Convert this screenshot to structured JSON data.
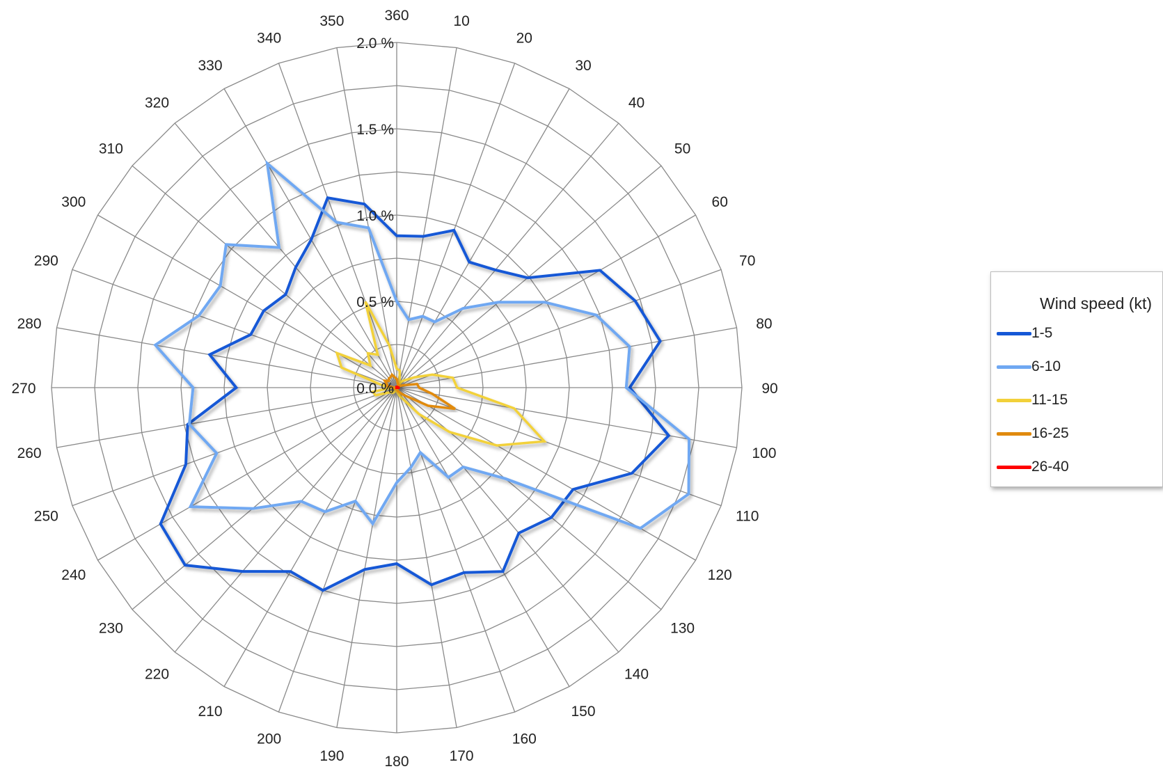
{
  "chart_data": {
    "type": "radar",
    "directions": [
      360,
      10,
      20,
      30,
      40,
      50,
      60,
      70,
      80,
      90,
      100,
      110,
      120,
      130,
      140,
      150,
      160,
      170,
      180,
      190,
      200,
      210,
      220,
      230,
      240,
      250,
      260,
      270,
      280,
      290,
      300,
      310,
      320,
      330,
      340,
      350
    ],
    "radial_ticks": [
      "0.0 %",
      "0.5 %",
      "1.0 %",
      "1.5 %",
      "2.0 %"
    ],
    "radial_range": [
      0,
      2.0
    ],
    "grid": true,
    "legend": {
      "title": "Wind speed (kt)",
      "placement": "right"
    },
    "series": [
      {
        "name": "1-5",
        "color": "#1558d6",
        "values": [
          0.88,
          0.89,
          0.97,
          0.84,
          0.89,
          0.99,
          1.36,
          1.47,
          1.55,
          1.35,
          1.6,
          1.45,
          1.18,
          1.17,
          1.1,
          1.23,
          1.14,
          1.16,
          1.02,
          1.07,
          1.25,
          1.23,
          1.39,
          1.6,
          1.58,
          1.3,
          1.23,
          0.93,
          1.1,
          0.9,
          0.89,
          0.84,
          0.91,
          0.99,
          1.17,
          1.08
        ]
      },
      {
        "name": "6-10",
        "color": "#6fa8f2",
        "values": [
          0.5,
          0.4,
          0.44,
          0.44,
          0.6,
          0.77,
          0.99,
          1.23,
          1.37,
          1.33,
          1.72,
          1.8,
          1.63,
          0.82,
          0.6,
          0.6,
          0.4,
          0.47,
          0.55,
          0.8,
          0.7,
          0.83,
          0.86,
          1.09,
          1.38,
          1.11,
          1.22,
          1.18,
          1.42,
          1.22,
          1.18,
          1.29,
          1.06,
          1.5,
          1.02,
          0.94
        ]
      },
      {
        "name": "11-15",
        "color": "#f2d13a",
        "values": [
          0.11,
          0.1,
          0.05,
          0.02,
          0.05,
          0.07,
          0.12,
          0.22,
          0.33,
          0.35,
          0.69,
          0.91,
          0.67,
          0.4,
          0.2,
          0.08,
          0.05,
          0.03,
          0.02,
          0.02,
          0.02,
          0.03,
          0.04,
          0.04,
          0.06,
          0.13,
          0.14,
          0.03,
          0.09,
          0.34,
          0.4,
          0.2,
          0.26,
          0.22,
          0.53,
          0.25
        ]
      },
      {
        "name": "16-25",
        "color": "#e08a0e",
        "values": [
          0.05,
          0.03,
          0.02,
          0.02,
          0.02,
          0.02,
          0.02,
          0.04,
          0.12,
          0.13,
          0.21,
          0.36,
          0.21,
          0.08,
          0.05,
          0.03,
          0.02,
          0.01,
          0.01,
          0.01,
          0.01,
          0.01,
          0.01,
          0.01,
          0.01,
          0.02,
          0.01,
          0.01,
          0.06,
          0.06,
          0.08,
          0.06,
          0.07,
          0.07,
          0.08,
          0.06
        ]
      },
      {
        "name": "26-40",
        "color": "#ff0000",
        "values": [
          0.01,
          0.005,
          0.005,
          0.005,
          0.005,
          0.005,
          0.005,
          0.005,
          0.01,
          0.01,
          0.015,
          0.015,
          0.01,
          0.005,
          0.005,
          0.005,
          0.005,
          0.005,
          0.005,
          0.005,
          0.005,
          0.005,
          0.005,
          0.005,
          0.005,
          0.005,
          0.005,
          0.005,
          0.005,
          0.005,
          0.005,
          0.005,
          0.005,
          0.005,
          0.005,
          0.01
        ]
      }
    ]
  }
}
